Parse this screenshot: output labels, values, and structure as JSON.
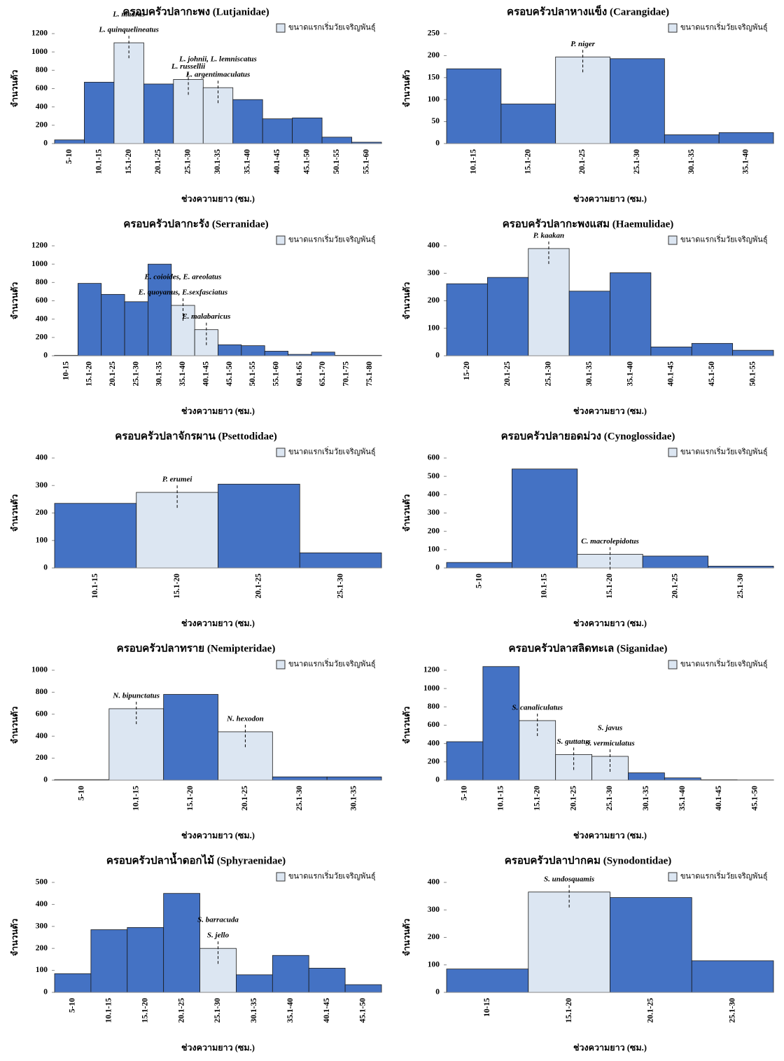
{
  "chart_data": [
    {
      "type": "bar",
      "title": "ครอบครัวปลากะพง (Lutjanidae)",
      "ylabel": "จำนวนตัว",
      "xlabel": "ช่วงความยาว (ซม.)",
      "categories": [
        "5-10",
        "10.1-15",
        "15.1-20",
        "20.1-25",
        "25.1-30",
        "30.1-35",
        "35.1-40",
        "40.1-45",
        "45.1-50",
        "50.1-55",
        "55.1-60"
      ],
      "values": [
        40,
        670,
        1100,
        650,
        700,
        610,
        480,
        270,
        280,
        70,
        15
      ],
      "colors": [
        "#4472c4",
        "#4472c4",
        "#dce6f2",
        "#4472c4",
        "#dce6f2",
        "#dce6f2",
        "#4472c4",
        "#4472c4",
        "#4472c4",
        "#4472c4",
        "#4472c4"
      ],
      "ylim": [
        0,
        1200
      ],
      "yticks": [
        0,
        200,
        400,
        600,
        800,
        1000,
        1200
      ],
      "legend": {
        "label": "ขนาดแรกเริ่มวัยเจริญพันธุ์",
        "color": "#dce6f2"
      },
      "annotations": [
        {
          "text": "L. quinquelineatus",
          "category": "15.1-20"
        },
        {
          "text": "L. madras",
          "category": "15.1-20"
        },
        {
          "text": "L. russellii",
          "category": "25.1-30"
        },
        {
          "text": "L. argentimaculatus",
          "category": "30.1-35"
        },
        {
          "text": "L. johnii, L. lemniscatus",
          "category": "30.1-35"
        }
      ]
    },
    {
      "type": "bar",
      "title": "ครอบครัวปลาหางแข็ง (Carangidae)",
      "ylabel": "จำนวนตัว",
      "xlabel": "ช่วงความยาว (ซม.)",
      "categories": [
        "10.1-15",
        "15.1-20",
        "20.1-25",
        "25.1-30",
        "30.1-35",
        "35.1-40"
      ],
      "values": [
        170,
        90,
        197,
        193,
        20,
        25
      ],
      "colors": [
        "#4472c4",
        "#4472c4",
        "#dce6f2",
        "#4472c4",
        "#4472c4",
        "#4472c4"
      ],
      "ylim": [
        0,
        250
      ],
      "yticks": [
        0,
        50,
        100,
        150,
        200,
        250
      ],
      "legend": {
        "label": "ขนาดแรกเริ่มวัยเจริญพันธุ์",
        "color": "#dce6f2"
      },
      "annotations": [
        {
          "text": "P. niger",
          "category": "20.1-25"
        }
      ]
    },
    {
      "type": "bar",
      "title": "ครอบครัวปลากะรัง (Serranidae)",
      "ylabel": "จำนวนตัว",
      "xlabel": "ช่วงความยาว (ซม.)",
      "categories": [
        "10-15",
        "15.1-20",
        "20.1-25",
        "25.1-30",
        "30.1-35",
        "35.1-40",
        "40.1-45",
        "45.1-50",
        "50.1-55",
        "55.1-60",
        "60.1-65",
        "65.1-70",
        "70.1-75",
        "75.1-80"
      ],
      "values": [
        5,
        790,
        670,
        590,
        1000,
        550,
        285,
        120,
        110,
        50,
        15,
        40,
        5,
        5
      ],
      "colors": [
        "#4472c4",
        "#4472c4",
        "#4472c4",
        "#4472c4",
        "#4472c4",
        "#dce6f2",
        "#dce6f2",
        "#4472c4",
        "#4472c4",
        "#4472c4",
        "#4472c4",
        "#4472c4",
        "#4472c4",
        "#4472c4"
      ],
      "ylim": [
        0,
        1200
      ],
      "yticks": [
        0,
        200,
        400,
        600,
        800,
        1000,
        1200
      ],
      "legend": {
        "label": "ขนาดแรกเริ่มวัยเจริญพันธุ์",
        "color": "#dce6f2"
      },
      "annotations": [
        {
          "text": "E. quoyanus, E.sexfasciatus",
          "category": "35.1-40"
        },
        {
          "text": "E. coioides, E. areolatus",
          "category": "35.1-40"
        },
        {
          "text": "E. malabaricus",
          "category": "40.1-45"
        }
      ]
    },
    {
      "type": "bar",
      "title": "ครอบครัวปลากะพงแสม (Haemulidae)",
      "ylabel": "จำนวนตัว",
      "xlabel": "ช่วงความยาว (ซม.)",
      "categories": [
        "15-20",
        "20.1-25",
        "25.1-30",
        "30.1-35",
        "35.1-40",
        "40.1-45",
        "45.1-50",
        "50.1-55"
      ],
      "values": [
        262,
        285,
        390,
        235,
        302,
        32,
        45,
        20
      ],
      "colors": [
        "#4472c4",
        "#4472c4",
        "#dce6f2",
        "#4472c4",
        "#4472c4",
        "#4472c4",
        "#4472c4",
        "#4472c4"
      ],
      "ylim": [
        0,
        400
      ],
      "yticks": [
        0,
        100,
        200,
        300,
        400
      ],
      "legend": {
        "label": "ขนาดแรกเริ่มวัยเจริญพันธุ์",
        "color": "#dce6f2"
      },
      "annotations": [
        {
          "text": "P. kaakan",
          "category": "25.1-30"
        }
      ]
    },
    {
      "type": "bar",
      "title": "ครอบครัวปลาจักรผาน (Psettodidae)",
      "ylabel": "จำนวนตัว",
      "xlabel": "ช่วงความยาว (ซม.)",
      "categories": [
        "10.1-15",
        "15.1-20",
        "20.1-25",
        "25.1-30"
      ],
      "values": [
        235,
        275,
        305,
        55
      ],
      "colors": [
        "#4472c4",
        "#dce6f2",
        "#4472c4",
        "#4472c4"
      ],
      "ylim": [
        0,
        400
      ],
      "yticks": [
        0,
        100,
        200,
        300,
        400
      ],
      "legend": {
        "label": "ขนาดแรกเริ่มวัยเจริญพันธุ์",
        "color": "#dce6f2"
      },
      "annotations": [
        {
          "text": "P. erumei",
          "category": "15.1-20"
        }
      ]
    },
    {
      "type": "bar",
      "title": "ครอบครัวปลายอดม่วง (Cynoglossidae)",
      "ylabel": "จำนวนตัว",
      "xlabel": "ช่วงความยาว (ซม.)",
      "categories": [
        "5-10",
        "10.1-15",
        "15.1-20",
        "20.1-25",
        "25.1-30"
      ],
      "values": [
        30,
        540,
        75,
        65,
        10
      ],
      "colors": [
        "#4472c4",
        "#4472c4",
        "#dce6f2",
        "#4472c4",
        "#4472c4"
      ],
      "ylim": [
        0,
        600
      ],
      "yticks": [
        0,
        100,
        200,
        300,
        400,
        500,
        600
      ],
      "legend": {
        "label": "ขนาดแรกเริ่มวัยเจริญพันธุ์",
        "color": "#dce6f2"
      },
      "annotations": [
        {
          "text": "C. macrolepidotus",
          "category": "15.1-20"
        }
      ]
    },
    {
      "type": "bar",
      "title": "ครอบครัวปลาทราย (Nemipteridae)",
      "ylabel": "จำนวนตัว",
      "xlabel": "ช่วงความยาว (ซม.)",
      "categories": [
        "5-10",
        "10.1-15",
        "15.1-20",
        "20.1-25",
        "25.1-30",
        "30.1-35"
      ],
      "values": [
        5,
        650,
        780,
        440,
        30,
        30
      ],
      "colors": [
        "#4472c4",
        "#dce6f2",
        "#4472c4",
        "#dce6f2",
        "#4472c4",
        "#4472c4"
      ],
      "ylim": [
        0,
        1000
      ],
      "yticks": [
        0,
        200,
        400,
        600,
        800,
        1000
      ],
      "legend": {
        "label": "ขนาดแรกเริ่มวัยเจริญพันธุ์",
        "color": "#dce6f2"
      },
      "annotations": [
        {
          "text": "N. bipunctatus",
          "category": "10.1-15"
        },
        {
          "text": "N. hexodon",
          "category": "20.1-25"
        }
      ]
    },
    {
      "type": "bar",
      "title": "ครอบครัวปลาสลิดทะเล (Siganidae)",
      "ylabel": "จำนวนตัว",
      "xlabel": "ช่วงความยาว (ซม.)",
      "categories": [
        "5-10",
        "10.1-15",
        "15.1-20",
        "20.1-25",
        "25.1-30",
        "30.1-35",
        "35.1-40",
        "40.1-45",
        "45.1-50"
      ],
      "values": [
        420,
        1240,
        650,
        280,
        260,
        80,
        25,
        5,
        3
      ],
      "colors": [
        "#4472c4",
        "#4472c4",
        "#dce6f2",
        "#dce6f2",
        "#dce6f2",
        "#4472c4",
        "#4472c4",
        "#4472c4",
        "#4472c4"
      ],
      "ylim": [
        0,
        1200
      ],
      "yticks": [
        0,
        200,
        400,
        600,
        800,
        1000,
        1200
      ],
      "legend": {
        "label": "ขนาดแรกเริ่มวัยเจริญพันธุ์",
        "color": "#dce6f2"
      },
      "annotations": [
        {
          "text": "S. canaliculatus",
          "category": "15.1-20"
        },
        {
          "text": "S. guttatus",
          "category": "20.1-25"
        },
        {
          "text": "S. vermiculatus",
          "category": "25.1-30"
        },
        {
          "text": "S. javus",
          "category": "25.1-30"
        }
      ]
    },
    {
      "type": "bar",
      "title": "ครอบครัวปลาน้ำดอกไม้ (Sphyraenidae)",
      "ylabel": "จำนวนตัว",
      "xlabel": "ช่วงความยาว (ซม.)",
      "categories": [
        "5-10",
        "10.1-15",
        "15.1-20",
        "20.1-25",
        "25.1-30",
        "30.1-35",
        "35.1-40",
        "40.1-45",
        "45.1-50"
      ],
      "values": [
        85,
        285,
        295,
        450,
        200,
        80,
        168,
        110,
        35
      ],
      "colors": [
        "#4472c4",
        "#4472c4",
        "#4472c4",
        "#4472c4",
        "#dce6f2",
        "#4472c4",
        "#4472c4",
        "#4472c4",
        "#4472c4"
      ],
      "ylim": [
        0,
        500
      ],
      "yticks": [
        0,
        100,
        200,
        300,
        400,
        500
      ],
      "legend": {
        "label": "ขนาดแรกเริ่มวัยเจริญพันธุ์",
        "color": "#dce6f2"
      },
      "annotations": [
        {
          "text": "S. jello",
          "category": "25.1-30"
        },
        {
          "text": "S. barracuda",
          "category": "25.1-30"
        }
      ]
    },
    {
      "type": "bar",
      "title": "ครอบครัวปลาปากคม (Synodontidae)",
      "ylabel": "จำนวนตัว",
      "xlabel": "ช่วงความยาว (ซม.)",
      "categories": [
        "10-15",
        "15.1-20",
        "20.1-25",
        "25.1-30"
      ],
      "values": [
        85,
        365,
        345,
        115
      ],
      "colors": [
        "#4472c4",
        "#dce6f2",
        "#4472c4",
        "#4472c4"
      ],
      "ylim": [
        0,
        400
      ],
      "yticks": [
        0,
        100,
        200,
        300,
        400
      ],
      "legend": {
        "label": "ขนาดแรกเริ่มวัยเจริญพันธุ์",
        "color": "#dce6f2"
      },
      "annotations": [
        {
          "text": "S. undosquamis",
          "category": "15.1-20"
        }
      ]
    }
  ]
}
